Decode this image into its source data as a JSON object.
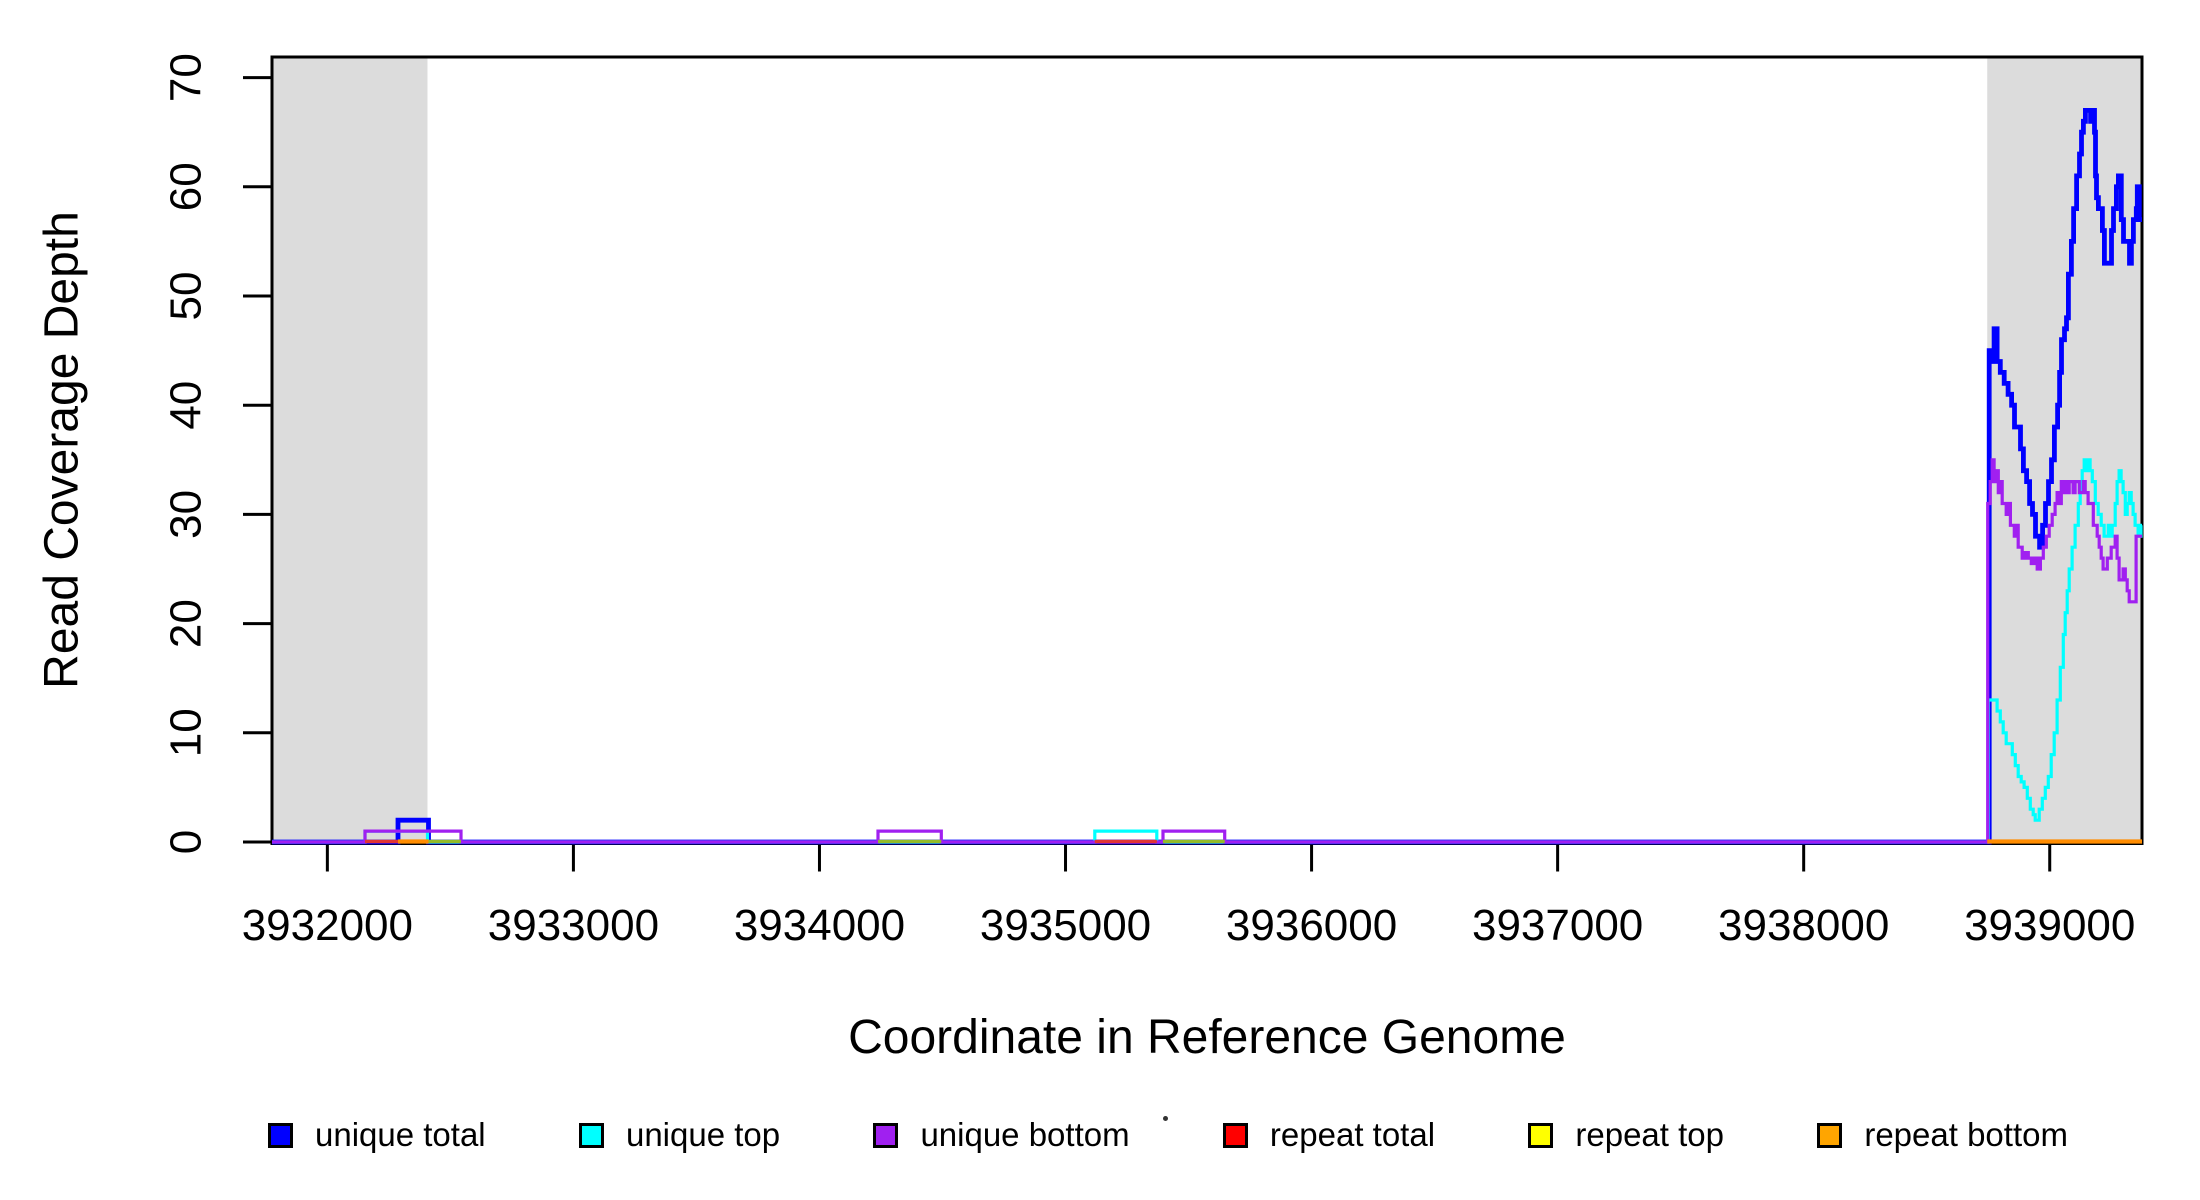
{
  "figure": {
    "background": "#FFFFFF",
    "plot_box_color": "#000000",
    "shaded_band_color": "#DCDCDC"
  },
  "chart_data": {
    "type": "line",
    "subtype": "step-coverage",
    "title": "",
    "xlabel": "Coordinate in Reference Genome",
    "ylabel": "Read Coverage Depth",
    "xlim": [
      3931775,
      3939375
    ],
    "ylim": [
      0,
      72
    ],
    "x_ticks": [
      3932000,
      3933000,
      3934000,
      3935000,
      3936000,
      3937000,
      3938000,
      3939000
    ],
    "y_ticks": [
      0,
      10,
      20,
      30,
      40,
      50,
      60,
      70
    ],
    "grid": false,
    "legend_position": "bottom",
    "shaded_regions": [
      {
        "x0": 3931775,
        "x1": 3932407,
        "color": "#DCDCDC"
      },
      {
        "x0": 3938746,
        "x1": 3939375,
        "color": "#DCDCDC"
      }
    ],
    "series": [
      {
        "name": "unique total",
        "color": "#0000FF",
        "line_width": 4.8,
        "steps": [
          [
            3931775,
            0
          ],
          [
            3932287,
            2
          ],
          [
            3932411,
            0
          ],
          [
            3938754,
            45
          ],
          [
            3938766,
            44
          ],
          [
            3938774,
            47
          ],
          [
            3938786,
            44
          ],
          [
            3938799,
            43
          ],
          [
            3938815,
            42
          ],
          [
            3938831,
            41
          ],
          [
            3938845,
            40
          ],
          [
            3938857,
            38
          ],
          [
            3938881,
            36
          ],
          [
            3938893,
            34
          ],
          [
            3938906,
            33
          ],
          [
            3938918,
            31
          ],
          [
            3938930,
            30
          ],
          [
            3938942,
            28
          ],
          [
            3938959,
            27
          ],
          [
            3938971,
            29
          ],
          [
            3938983,
            31
          ],
          [
            3938995,
            33
          ],
          [
            3939007,
            35
          ],
          [
            3939019,
            38
          ],
          [
            3939032,
            40
          ],
          [
            3939040,
            43
          ],
          [
            3939048,
            46
          ],
          [
            3939060,
            47
          ],
          [
            3939068,
            48
          ],
          [
            3939076,
            52
          ],
          [
            3939088,
            55
          ],
          [
            3939097,
            58
          ],
          [
            3939109,
            61
          ],
          [
            3939121,
            63
          ],
          [
            3939129,
            65
          ],
          [
            3939137,
            66
          ],
          [
            3939145,
            67
          ],
          [
            3939166,
            66
          ],
          [
            3939174,
            67
          ],
          [
            3939182,
            65
          ],
          [
            3939186,
            61
          ],
          [
            3939190,
            59
          ],
          [
            3939198,
            58
          ],
          [
            3939214,
            56
          ],
          [
            3939222,
            53
          ],
          [
            3939243,
            53
          ],
          [
            3939251,
            56
          ],
          [
            3939259,
            58
          ],
          [
            3939271,
            60
          ],
          [
            3939279,
            61
          ],
          [
            3939291,
            57
          ],
          [
            3939300,
            55
          ],
          [
            3939320,
            55
          ],
          [
            3939324,
            53
          ],
          [
            3939332,
            55
          ],
          [
            3939340,
            57
          ],
          [
            3939352,
            58
          ],
          [
            3939356,
            60
          ],
          [
            3939364,
            57
          ]
        ]
      },
      {
        "name": "unique top",
        "color": "#00FFFF",
        "line_width": 3.2,
        "steps": [
          [
            3931775,
            0
          ],
          [
            3932153,
            1
          ],
          [
            3932407,
            0
          ],
          [
            3935119,
            1
          ],
          [
            3935371,
            0
          ],
          [
            3938750,
            13
          ],
          [
            3938774,
            13
          ],
          [
            3938786,
            12
          ],
          [
            3938799,
            11
          ],
          [
            3938811,
            10
          ],
          [
            3938823,
            9
          ],
          [
            3938848,
            8
          ],
          [
            3938860,
            7
          ],
          [
            3938872,
            6
          ],
          [
            3938884,
            5.5
          ],
          [
            3938896,
            5
          ],
          [
            3938909,
            4
          ],
          [
            3938921,
            3
          ],
          [
            3938933,
            2.5
          ],
          [
            3938941,
            2
          ],
          [
            3938957,
            3
          ],
          [
            3938970,
            4
          ],
          [
            3938982,
            5
          ],
          [
            3938994,
            6
          ],
          [
            3939006,
            8
          ],
          [
            3939018,
            10
          ],
          [
            3939030,
            13
          ],
          [
            3939043,
            16
          ],
          [
            3939055,
            19
          ],
          [
            3939063,
            21
          ],
          [
            3939071,
            23
          ],
          [
            3939079,
            25
          ],
          [
            3939091,
            27
          ],
          [
            3939103,
            29
          ],
          [
            3939116,
            31
          ],
          [
            3939124,
            33
          ],
          [
            3939132,
            34
          ],
          [
            3939140,
            35
          ],
          [
            3939148,
            34
          ],
          [
            3939156,
            35
          ],
          [
            3939164,
            34
          ],
          [
            3939173,
            33
          ],
          [
            3939185,
            31
          ],
          [
            3939197,
            30
          ],
          [
            3939209,
            29
          ],
          [
            3939221,
            28
          ],
          [
            3939238,
            29
          ],
          [
            3939246,
            28
          ],
          [
            3939254,
            29
          ],
          [
            3939266,
            31
          ],
          [
            3939274,
            33
          ],
          [
            3939282,
            34
          ],
          [
            3939290,
            33
          ],
          [
            3939298,
            32
          ],
          [
            3939307,
            30
          ],
          [
            3939315,
            31
          ],
          [
            3939323,
            32
          ],
          [
            3939331,
            31
          ],
          [
            3939339,
            30
          ],
          [
            3939347,
            29
          ],
          [
            3939359,
            28
          ],
          [
            3939371,
            29
          ]
        ]
      },
      {
        "name": "unique bottom",
        "color": "#A020F0",
        "line_width": 3.2,
        "steps": [
          [
            3931775,
            0
          ],
          [
            3932153,
            1
          ],
          [
            3932543,
            0
          ],
          [
            3934238,
            1
          ],
          [
            3934495,
            0
          ],
          [
            3935396,
            1
          ],
          [
            3935647,
            0
          ],
          [
            3938748,
            31
          ],
          [
            3938758,
            33
          ],
          [
            3938766,
            35
          ],
          [
            3938774,
            33
          ],
          [
            3938782,
            34
          ],
          [
            3938791,
            32
          ],
          [
            3938799,
            33
          ],
          [
            3938807,
            31
          ],
          [
            3938823,
            30
          ],
          [
            3938831,
            31
          ],
          [
            3938840,
            29
          ],
          [
            3938856,
            28
          ],
          [
            3938864,
            29
          ],
          [
            3938872,
            27
          ],
          [
            3938888,
            26
          ],
          [
            3938900,
            26.5
          ],
          [
            3938913,
            26
          ],
          [
            3938925,
            25.5
          ],
          [
            3938937,
            26
          ],
          [
            3938949,
            25
          ],
          [
            3938962,
            26
          ],
          [
            3938974,
            27
          ],
          [
            3938986,
            28
          ],
          [
            3938998,
            29
          ],
          [
            3939010,
            30
          ],
          [
            3939022,
            31
          ],
          [
            3939030,
            32
          ],
          [
            3939039,
            31
          ],
          [
            3939047,
            33
          ],
          [
            3939055,
            32
          ],
          [
            3939063,
            33
          ],
          [
            3939071,
            32
          ],
          [
            3939079,
            33
          ],
          [
            3939095,
            32
          ],
          [
            3939103,
            33
          ],
          [
            3939120,
            32
          ],
          [
            3939136,
            33
          ],
          [
            3939144,
            32
          ],
          [
            3939156,
            31
          ],
          [
            3939177,
            29
          ],
          [
            3939185,
            29
          ],
          [
            3939193,
            28
          ],
          [
            3939201,
            27
          ],
          [
            3939209,
            26
          ],
          [
            3939217,
            25
          ],
          [
            3939234,
            26
          ],
          [
            3939250,
            27
          ],
          [
            3939266,
            28
          ],
          [
            3939274,
            26
          ],
          [
            3939282,
            24
          ],
          [
            3939298,
            25
          ],
          [
            3939307,
            24
          ],
          [
            3939315,
            23
          ],
          [
            3939323,
            22
          ],
          [
            3939339,
            22
          ],
          [
            3939351,
            28
          ],
          [
            3939371,
            28
          ]
        ]
      },
      {
        "name": "repeat total",
        "color": "#FF0000",
        "line_width": 3.4,
        "steps": [
          [
            3931775,
            0
          ]
        ],
        "visible_zero_segments": [
          [
            3932153,
            3932287
          ],
          [
            3935119,
            3935371
          ]
        ],
        "render_color": "#E03535"
      },
      {
        "name": "repeat top",
        "color": "#FFFF00",
        "line_width": 3.4,
        "steps": [
          [
            3931775,
            0
          ]
        ],
        "visible_zero_segments": [
          [
            3932411,
            3932543
          ],
          [
            3934238,
            3934495
          ],
          [
            3935396,
            3935647
          ]
        ],
        "render_color": "#93BB2A"
      },
      {
        "name": "repeat bottom",
        "color": "#FFA500",
        "line_width": 4.2,
        "steps": [
          [
            3931775,
            0
          ]
        ],
        "visible_zero_segments": [
          [
            3932287,
            3932411
          ],
          [
            3938746,
            3939375
          ]
        ],
        "render_color": "#FF8C00"
      }
    ]
  },
  "legend": {
    "items": [
      {
        "label": "unique total",
        "color": "#0000FF"
      },
      {
        "label": "unique top",
        "color": "#00FFFF"
      },
      {
        "label": "unique bottom",
        "color": "#A020F0"
      },
      {
        "label": "repeat total",
        "color": "#FF0000"
      },
      {
        "label": "repeat top",
        "color": "#FFFF00"
      },
      {
        "label": "repeat bottom",
        "color": "#FFA500"
      }
    ]
  }
}
